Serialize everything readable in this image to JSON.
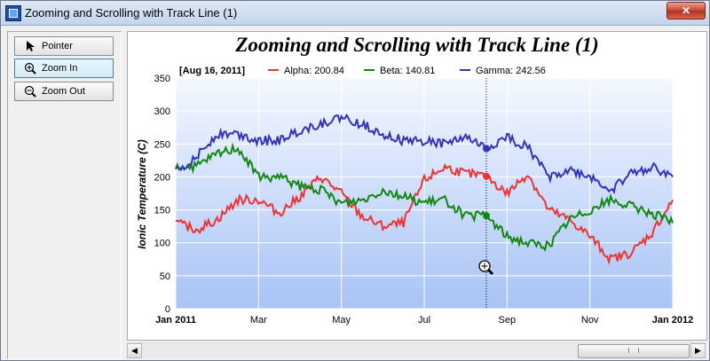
{
  "window": {
    "title": "Zooming and Scrolling with Track Line (1)",
    "close_label": "✕"
  },
  "toolbar": {
    "pointer": {
      "label": "Pointer",
      "icon": "pointer-arrow-icon"
    },
    "zoom_in": {
      "label": "Zoom In",
      "icon": "zoom-in-icon",
      "active": true
    },
    "zoom_out": {
      "label": "Zoom Out",
      "icon": "zoom-out-icon"
    }
  },
  "chart_data": {
    "type": "line",
    "title": "Zooming and Scrolling with Track Line (1)",
    "ylabel": "Ionic Temperature (C)",
    "xlabel": "",
    "ylim": [
      0,
      350
    ],
    "yticks": [
      0,
      50,
      100,
      150,
      200,
      250,
      300,
      350
    ],
    "xticks": [
      "Jan 2011",
      "Mar",
      "May",
      "Jul",
      "Sep",
      "Nov",
      "Jan 2012"
    ],
    "xtick_months": [
      0,
      2,
      4,
      6,
      8,
      10,
      12
    ],
    "grid": true,
    "legend": {
      "placement": "top",
      "date_label": "[Aug 16, 2011]",
      "entries": [
        "Alpha: 200.84",
        "Beta: 140.81",
        "Gamma: 242.56"
      ]
    },
    "track_line_month": 7.5,
    "series": [
      {
        "name": "Alpha",
        "color": "#ee3333",
        "x": [
          0,
          0.5,
          1,
          1.5,
          2,
          2.5,
          3,
          3.5,
          4,
          4.5,
          5,
          5.5,
          6,
          6.5,
          7,
          7.5,
          8,
          8.5,
          9,
          9.5,
          10,
          10.5,
          11,
          11.5,
          12
        ],
        "values": [
          130,
          120,
          135,
          165,
          165,
          145,
          170,
          200,
          175,
          140,
          125,
          130,
          195,
          215,
          205,
          201,
          175,
          205,
          150,
          135,
          110,
          75,
          85,
          115,
          165
        ]
      },
      {
        "name": "Beta",
        "color": "#118811",
        "x": [
          0,
          0.5,
          1,
          1.5,
          2,
          2.5,
          3,
          3.5,
          4,
          4.5,
          5,
          5.5,
          6,
          6.5,
          7,
          7.5,
          8,
          8.5,
          9,
          9.5,
          10,
          10.5,
          11,
          11.5,
          12
        ],
        "values": [
          215,
          215,
          235,
          245,
          200,
          200,
          185,
          180,
          160,
          165,
          180,
          170,
          160,
          165,
          140,
          141,
          110,
          100,
          95,
          135,
          150,
          165,
          155,
          145,
          130
        ]
      },
      {
        "name": "Gamma",
        "color": "#3333bb",
        "x": [
          0,
          0.5,
          1,
          1.5,
          2,
          2.5,
          3,
          3.5,
          4,
          4.5,
          5,
          5.5,
          6,
          6.5,
          7,
          7.5,
          8,
          8.5,
          9,
          9.5,
          10,
          10.5,
          11,
          11.5,
          12
        ],
        "values": [
          210,
          230,
          265,
          265,
          255,
          255,
          270,
          280,
          290,
          280,
          265,
          255,
          255,
          250,
          260,
          243,
          260,
          245,
          200,
          210,
          200,
          180,
          205,
          215,
          200
        ]
      }
    ]
  }
}
